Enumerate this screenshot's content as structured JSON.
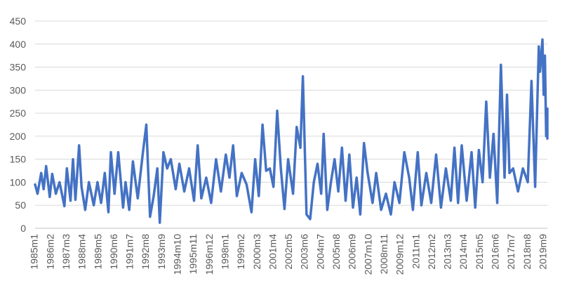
{
  "chart_data": {
    "type": "line",
    "title": "",
    "xlabel": "",
    "ylabel": "",
    "ylim": [
      0,
      450
    ],
    "y_ticks": [
      0,
      50,
      100,
      150,
      200,
      250,
      300,
      350,
      400,
      450
    ],
    "grid": true,
    "legend": "none",
    "x_start": "1985m1",
    "x_end": "2019m12",
    "x_tick_labels": [
      "1985m1",
      "1986m2",
      "1987m3",
      "1988m4",
      "1989m5",
      "1990m6",
      "1991m7",
      "1992m8",
      "1993m9",
      "1994m10",
      "1995m11",
      "1996m12",
      "1998m1",
      "1999m2",
      "2000m3",
      "2001m4",
      "2002m5",
      "2003m6",
      "2004m7",
      "2005m8",
      "2006m9",
      "2007m10",
      "2008m11",
      "2009m12",
      "2011m1",
      "2012m2",
      "2013m3",
      "2014m4",
      "2015m5",
      "2016m6",
      "2017m7",
      "2018m8",
      "2019m9"
    ],
    "series": [
      {
        "color": "#4472c4",
        "points": [
          [
            "1985m1",
            95
          ],
          [
            "1985m3",
            75
          ],
          [
            "1985m6",
            120
          ],
          [
            "1985m8",
            85
          ],
          [
            "1985m10",
            135
          ],
          [
            "1986m1",
            68
          ],
          [
            "1986m3",
            118
          ],
          [
            "1986m6",
            75
          ],
          [
            "1986m9",
            100
          ],
          [
            "1987m1",
            48
          ],
          [
            "1987m3",
            130
          ],
          [
            "1987m6",
            60
          ],
          [
            "1987m8",
            150
          ],
          [
            "1987m10",
            62
          ],
          [
            "1988m1",
            180
          ],
          [
            "1988m3",
            90
          ],
          [
            "1988m6",
            40
          ],
          [
            "1988m9",
            100
          ],
          [
            "1989m1",
            50
          ],
          [
            "1989m4",
            100
          ],
          [
            "1989m7",
            55
          ],
          [
            "1989m10",
            120
          ],
          [
            "1990m1",
            35
          ],
          [
            "1990m3",
            165
          ],
          [
            "1990m6",
            75
          ],
          [
            "1990m9",
            165
          ],
          [
            "1991m1",
            45
          ],
          [
            "1991m3",
            100
          ],
          [
            "1991m6",
            40
          ],
          [
            "1991m9",
            145
          ],
          [
            "1992m1",
            65
          ],
          [
            "1992m5",
            160
          ],
          [
            "1992m8",
            225
          ],
          [
            "1992m11",
            25
          ],
          [
            "1993m2",
            70
          ],
          [
            "1993m5",
            130
          ],
          [
            "1993m7",
            12
          ],
          [
            "1993m10",
            165
          ],
          [
            "1994m1",
            130
          ],
          [
            "1994m4",
            150
          ],
          [
            "1994m8",
            85
          ],
          [
            "1994m11",
            140
          ],
          [
            "1995m3",
            80
          ],
          [
            "1995m7",
            130
          ],
          [
            "1995m11",
            60
          ],
          [
            "1996m2",
            180
          ],
          [
            "1996m5",
            65
          ],
          [
            "1996m9",
            110
          ],
          [
            "1997m1",
            55
          ],
          [
            "1997m5",
            150
          ],
          [
            "1997m9",
            80
          ],
          [
            "1998m1",
            160
          ],
          [
            "1998m4",
            110
          ],
          [
            "1998m7",
            180
          ],
          [
            "1998m10",
            70
          ],
          [
            "1999m2",
            120
          ],
          [
            "1999m6",
            95
          ],
          [
            "1999m10",
            35
          ],
          [
            "2000m1",
            150
          ],
          [
            "2000m4",
            70
          ],
          [
            "2000m7",
            225
          ],
          [
            "2000m10",
            125
          ],
          [
            "2001m1",
            130
          ],
          [
            "2001m4",
            90
          ],
          [
            "2001m7",
            255
          ],
          [
            "2001m10",
            130
          ],
          [
            "2002m1",
            42
          ],
          [
            "2002m4",
            150
          ],
          [
            "2002m8",
            75
          ],
          [
            "2002m11",
            220
          ],
          [
            "2003m2",
            175
          ],
          [
            "2003m4",
            330
          ],
          [
            "2003m7",
            30
          ],
          [
            "2003m10",
            20
          ],
          [
            "2004m1",
            100
          ],
          [
            "2004m4",
            140
          ],
          [
            "2004m7",
            75
          ],
          [
            "2004m9",
            205
          ],
          [
            "2004m12",
            40
          ],
          [
            "2005m3",
            100
          ],
          [
            "2005m6",
            150
          ],
          [
            "2005m9",
            80
          ],
          [
            "2005m12",
            175
          ],
          [
            "2006m3",
            60
          ],
          [
            "2006m6",
            160
          ],
          [
            "2006m9",
            45
          ],
          [
            "2006m12",
            110
          ],
          [
            "2007m3",
            30
          ],
          [
            "2007m6",
            185
          ],
          [
            "2007m9",
            120
          ],
          [
            "2008m1",
            55
          ],
          [
            "2008m4",
            120
          ],
          [
            "2008m8",
            40
          ],
          [
            "2008m12",
            75
          ],
          [
            "2009m4",
            30
          ],
          [
            "2009m7",
            100
          ],
          [
            "2009m11",
            55
          ],
          [
            "2010m3",
            165
          ],
          [
            "2010m7",
            110
          ],
          [
            "2010m10",
            40
          ],
          [
            "2011m2",
            165
          ],
          [
            "2011m5",
            50
          ],
          [
            "2011m9",
            120
          ],
          [
            "2012m1",
            55
          ],
          [
            "2012m5",
            160
          ],
          [
            "2012m9",
            45
          ],
          [
            "2013m1",
            130
          ],
          [
            "2013m5",
            60
          ],
          [
            "2013m8",
            175
          ],
          [
            "2013m11",
            55
          ],
          [
            "2014m2",
            180
          ],
          [
            "2014m6",
            60
          ],
          [
            "2014m10",
            165
          ],
          [
            "2015m1",
            45
          ],
          [
            "2015m4",
            170
          ],
          [
            "2015m7",
            100
          ],
          [
            "2015m10",
            275
          ],
          [
            "2016m1",
            110
          ],
          [
            "2016m4",
            205
          ],
          [
            "2016m7",
            55
          ],
          [
            "2016m10",
            355
          ],
          [
            "2017m1",
            110
          ],
          [
            "2017m3",
            290
          ],
          [
            "2017m5",
            120
          ],
          [
            "2017m8",
            130
          ],
          [
            "2017m12",
            80
          ],
          [
            "2018m4",
            130
          ],
          [
            "2018m8",
            100
          ],
          [
            "2018m11",
            320
          ],
          [
            "2019m2",
            90
          ],
          [
            "2019m5",
            395
          ],
          [
            "2019m6",
            340
          ],
          [
            "2019m8",
            410
          ],
          [
            "2019m9",
            290
          ],
          [
            "2019m10",
            375
          ],
          [
            "2019m11",
            200
          ],
          [
            "2019m12",
            260
          ],
          [
            "2019m12",
            195
          ]
        ]
      }
    ]
  }
}
